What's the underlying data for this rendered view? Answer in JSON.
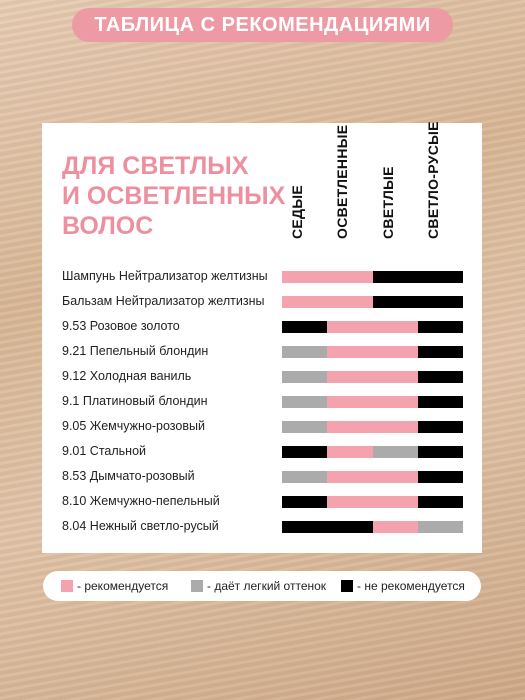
{
  "header": {
    "title": "ТАБЛИЦА С РЕКОМЕНДАЦИЯМИ"
  },
  "colors": {
    "recommended": "#f4a3ae",
    "light_shade": "#ababab",
    "not_recommended": "#000000",
    "accent": "#ee8fa0"
  },
  "table": {
    "title_lines": [
      "ДЛЯ СВЕТЛЫХ",
      "И ОСВЕТЛЕННЫХ",
      "ВОЛОС"
    ],
    "columns": [
      "СЕДЫЕ",
      "ОСВЕТЛЕННЫЕ",
      "СВЕТЛЫЕ",
      "СВЕТЛО-РУСЫЕ"
    ],
    "rows": [
      {
        "label": "Шампунь Нейтрализатор желтизны",
        "cells": [
          "r",
          "r",
          "n",
          "n"
        ]
      },
      {
        "label": "Бальзам Нейтрализатор желтизны",
        "cells": [
          "r",
          "r",
          "n",
          "n"
        ]
      },
      {
        "label": "9.53 Розовое золото",
        "cells": [
          "n",
          "r",
          "r",
          "n"
        ]
      },
      {
        "label": "9.21 Пепельный блондин",
        "cells": [
          "g",
          "r",
          "r",
          "n"
        ]
      },
      {
        "label": "9.12 Холодная ваниль",
        "cells": [
          "g",
          "r",
          "r",
          "n"
        ]
      },
      {
        "label": "9.1 Платиновый блондин",
        "cells": [
          "g",
          "r",
          "r",
          "n"
        ]
      },
      {
        "label": "9.05 Жемчужно-розовый",
        "cells": [
          "g",
          "r",
          "r",
          "n"
        ]
      },
      {
        "label": "9.01 Стальной",
        "cells": [
          "n",
          "r",
          "g",
          "n"
        ]
      },
      {
        "label": "8.53 Дымчато-розовый",
        "cells": [
          "g",
          "r",
          "r",
          "n"
        ]
      },
      {
        "label": "8.10 Жемчужно-пепельный",
        "cells": [
          "n",
          "r",
          "r",
          "n"
        ]
      },
      {
        "label": "8.04 Нежный светло-русый",
        "cells": [
          "n",
          "n",
          "r",
          "g"
        ]
      }
    ]
  },
  "legend": {
    "recommended": "- рекомендуется",
    "light_shade": "- даёт легкий оттенок",
    "not_recommended": "- не рекомендуется"
  }
}
